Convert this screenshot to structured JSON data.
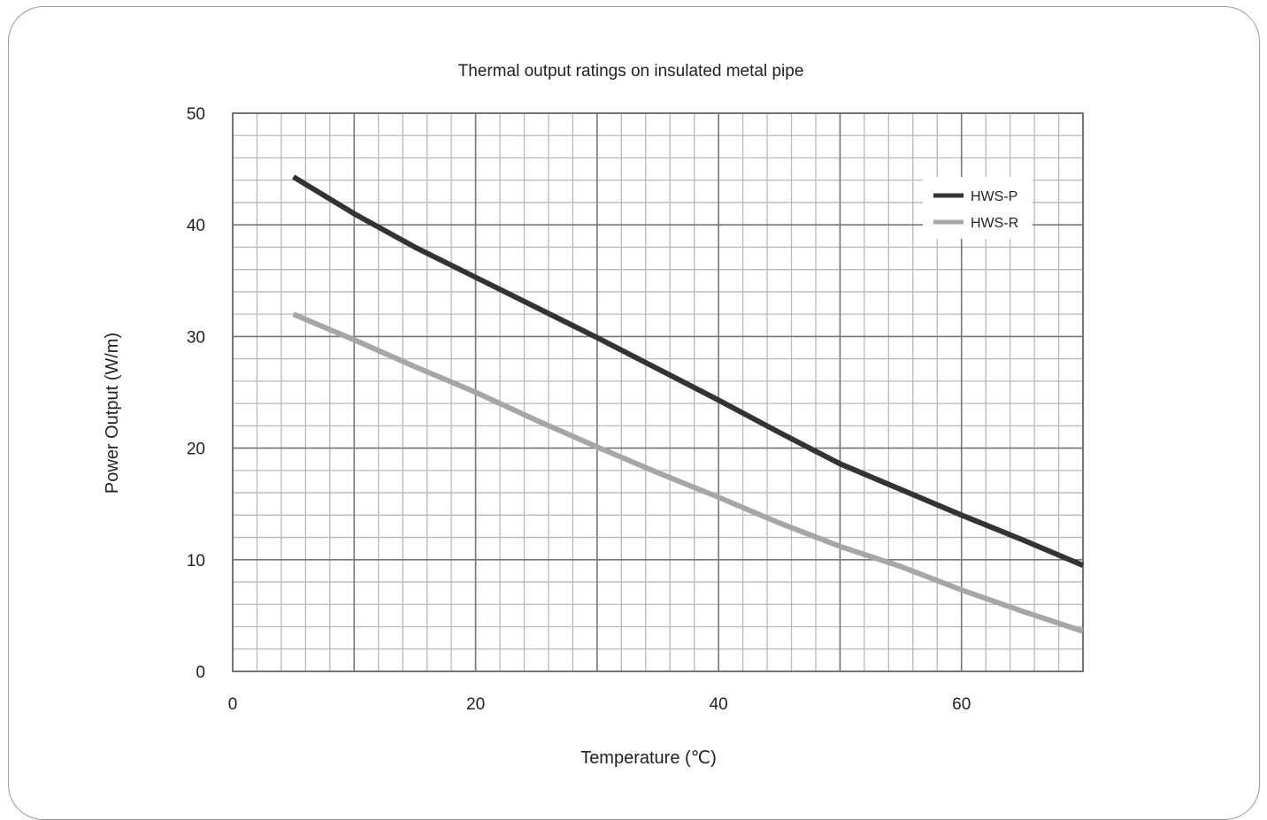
{
  "chart_data": {
    "type": "line",
    "title": "Thermal output ratings on insulated metal pipe",
    "xlabel": "Temperature (℃)",
    "ylabel": "Power Output (W/m)",
    "xlim": [
      0,
      70
    ],
    "ylim": [
      0,
      50
    ],
    "x_ticks": [
      0,
      20,
      40,
      60
    ],
    "y_ticks": [
      0,
      10,
      20,
      30,
      40,
      50
    ],
    "x_minor_step": 2,
    "y_minor_step": 2,
    "grid": true,
    "legend_position": "top-right",
    "series": [
      {
        "name": "HWS-P",
        "color": "#333333",
        "x": [
          5,
          10,
          15,
          20,
          25,
          30,
          35,
          40,
          45,
          50,
          55,
          60,
          65,
          70
        ],
        "y": [
          44.3,
          41.0,
          38.0,
          35.3,
          32.6,
          29.9,
          27.1,
          24.3,
          21.4,
          18.6,
          16.3,
          14.0,
          11.8,
          9.5
        ]
      },
      {
        "name": "HWS-R",
        "color": "#a6a6a6",
        "x": [
          5,
          10,
          15,
          20,
          25,
          30,
          35,
          40,
          45,
          50,
          55,
          60,
          65,
          70
        ],
        "y": [
          32.0,
          29.7,
          27.3,
          25.0,
          22.5,
          20.1,
          17.8,
          15.6,
          13.3,
          11.2,
          9.4,
          7.3,
          5.4,
          3.6
        ]
      }
    ]
  }
}
